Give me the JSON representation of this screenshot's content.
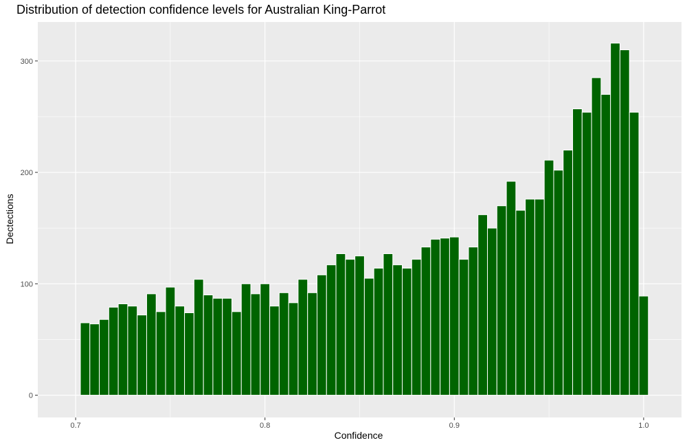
{
  "chart_data": {
    "type": "bar",
    "title": "Distribution of detection confidence levels for Australian King-Parrot",
    "xlabel": "Confidence",
    "ylabel": "Dectections",
    "xlim": [
      0.68,
      1.02
    ],
    "ylim": [
      -20,
      335
    ],
    "x_ticks": [
      "0.7",
      "0.8",
      "0.9",
      "1.0"
    ],
    "x_tick_values": [
      0.7,
      0.8,
      0.9,
      1.0
    ],
    "y_ticks": [
      "0",
      "100",
      "200",
      "300"
    ],
    "y_tick_values": [
      0,
      100,
      200,
      300
    ],
    "bin_start": 0.7025,
    "bin_width": 0.005,
    "values": [
      65,
      64,
      68,
      79,
      82,
      80,
      72,
      91,
      75,
      97,
      80,
      74,
      104,
      90,
      87,
      87,
      75,
      100,
      91,
      100,
      80,
      92,
      83,
      104,
      92,
      108,
      117,
      127,
      122,
      125,
      105,
      114,
      127,
      117,
      114,
      122,
      133,
      140,
      141,
      142,
      122,
      133,
      162,
      150,
      170,
      192,
      166,
      176,
      176,
      211,
      202,
      220,
      257,
      254,
      285,
      270,
      316,
      310,
      254,
      89
    ],
    "bar_color": "#006400",
    "panel_color": "#ebebeb",
    "grid": true
  }
}
